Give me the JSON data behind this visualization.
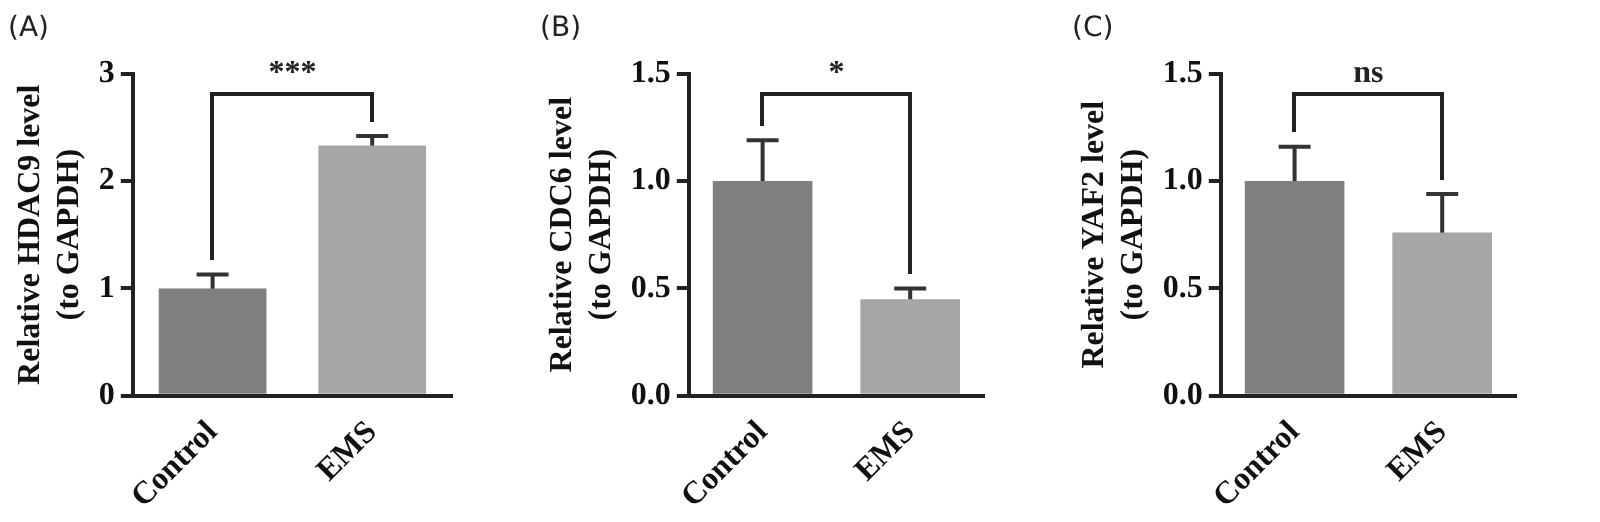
{
  "chart_data": [
    {
      "type": "bar",
      "title": "(A)",
      "ylabel": "Relative HDAC9 level\n(to GAPDH)",
      "categories": [
        "Control",
        "EMS"
      ],
      "values": [
        1.0,
        2.33
      ],
      "errors": [
        0.13,
        0.09
      ],
      "colors": [
        "#7f7f7f",
        "#a6a6a8"
      ],
      "ylim": [
        0,
        3
      ],
      "yticks": [
        0,
        1,
        2,
        3
      ],
      "grid": false,
      "legend": false,
      "annotations": [
        "***"
      ]
    },
    {
      "type": "bar",
      "title": "(B)",
      "ylabel": "Relative CDC6 level\n(to GAPDH)",
      "categories": [
        "Control",
        "EMS"
      ],
      "values": [
        1.0,
        0.45
      ],
      "errors": [
        0.19,
        0.05
      ],
      "colors": [
        "#7f7f7f",
        "#a6a6a8"
      ],
      "ylim": [
        0,
        1.5
      ],
      "yticks": [
        {
          "value": 0,
          "label": "0.0"
        },
        {
          "value": 0.5,
          "label": "0.5"
        },
        {
          "value": 1,
          "label": "1.0"
        },
        {
          "value": 1.5,
          "label": "1.5"
        }
      ],
      "grid": false,
      "legend": false,
      "annotations": [
        "*"
      ]
    },
    {
      "type": "bar",
      "title": "(C)",
      "ylabel": "Relative YAF2 level\n(to GAPDH)",
      "categories": [
        "Control",
        "EMS"
      ],
      "values": [
        1.0,
        0.76
      ],
      "errors": [
        0.16,
        0.18
      ],
      "colors": [
        "#7f7f7f",
        "#a6a6a8"
      ],
      "ylim": [
        0,
        1.5
      ],
      "yticks": [
        {
          "value": 0,
          "label": "0.0"
        },
        {
          "value": 0.5,
          "label": "0.5"
        },
        {
          "value": 1,
          "label": "1.0"
        },
        {
          "value": 1.5,
          "label": "1.5"
        }
      ],
      "grid": false,
      "legend": false,
      "annotations": [
        "ns"
      ]
    }
  ]
}
